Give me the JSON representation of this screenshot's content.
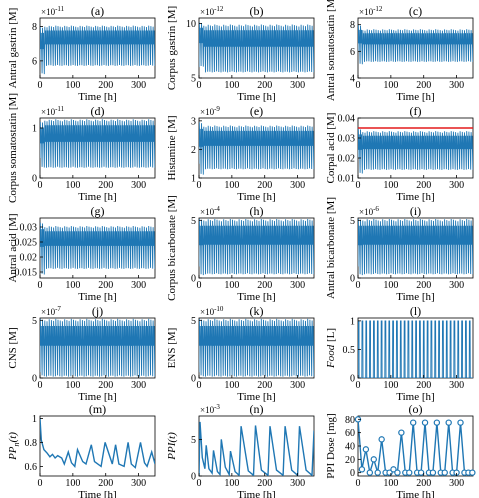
{
  "colors": {
    "line": "#1f77b4",
    "reference": "#e41a1c",
    "axis": "#000000"
  },
  "chart_data": [
    {
      "type": "line",
      "label": "(a)",
      "ylabel": "Antral gastrin [M]",
      "xlabel": "Time [h]",
      "scale": "×10^{-11}",
      "xlim": [
        0,
        350
      ],
      "ylim": [
        5,
        8.5
      ],
      "xticks": [
        0,
        100,
        200,
        300
      ],
      "yticks": [
        6,
        8
      ],
      "osc": {
        "kind": "wave",
        "n": 52,
        "low": 5.7,
        "high": 8.0,
        "start": 6.0,
        "transient": [
          5.2,
          7.9
        ]
      }
    },
    {
      "type": "line",
      "label": "(b)",
      "ylabel": "Corpus gastrin [M]",
      "xlabel": "Time [h]",
      "scale": "×10^{-12}",
      "xlim": [
        0,
        350
      ],
      "ylim": [
        5,
        10.5
      ],
      "xticks": [
        0,
        100,
        200,
        300
      ],
      "yticks": [
        5,
        10
      ],
      "osc": {
        "kind": "wave",
        "n": 52,
        "low": 5.5,
        "high": 9.8,
        "start": 6.0,
        "transient": [
          6.0,
          10.0
        ]
      }
    },
    {
      "type": "line",
      "label": "(c)",
      "ylabel": "Antral somatostatin [M]",
      "xlabel": "Time [h]",
      "scale": "×10^{-12}",
      "xlim": [
        0,
        350
      ],
      "ylim": [
        4,
        8.5
      ],
      "xticks": [
        0,
        100,
        200,
        300
      ],
      "yticks": [
        4,
        6,
        8
      ],
      "osc": {
        "kind": "wave",
        "n": 52,
        "low": 5.2,
        "high": 7.6,
        "start": 6.0,
        "transient": [
          5.0,
          7.9
        ]
      }
    },
    {
      "type": "line",
      "label": "(d)",
      "ylabel": "Corpus somatostatin [M]",
      "xlabel": "Time [h]",
      "scale": "×10^{-11}",
      "xlim": [
        0,
        350
      ],
      "ylim": [
        0,
        1.2
      ],
      "xticks": [
        0,
        100,
        200,
        300
      ],
      "yticks": [
        0,
        1
      ],
      "osc": {
        "kind": "wave",
        "n": 52,
        "low": 0.2,
        "high": 1.15,
        "start": 0.4,
        "transient": [
          0.2,
          1.1
        ]
      }
    },
    {
      "type": "line",
      "label": "(e)",
      "ylabel": "Histamine [M]",
      "xlabel": "Time [h]",
      "scale": "×10^{-9}",
      "xlim": [
        0,
        350
      ],
      "ylim": [
        1,
        3.1
      ],
      "xticks": [
        0,
        100,
        200,
        300
      ],
      "yticks": [
        1,
        2,
        3
      ],
      "osc": {
        "kind": "wave",
        "n": 52,
        "low": 1.3,
        "high": 2.8,
        "start": 1.5,
        "transient": [
          1.1,
          2.9
        ]
      }
    },
    {
      "type": "line",
      "label": "(f)",
      "ylabel": "Corpal acid [M]",
      "xlabel": "Time [h]",
      "scale": "",
      "xlim": [
        0,
        350
      ],
      "ylim": [
        0.01,
        0.04
      ],
      "xticks": [
        0,
        100,
        200,
        300
      ],
      "yticks": [
        0.01,
        0.02,
        0.03,
        0.04
      ],
      "hline": 0.035,
      "osc": {
        "kind": "wave",
        "n": 52,
        "low": 0.014,
        "high": 0.033,
        "start": 0.02,
        "transient": [
          0.012,
          0.034
        ]
      }
    },
    {
      "type": "line",
      "label": "(g)",
      "ylabel": "Antral acid [M]",
      "xlabel": "Time [h]",
      "scale": "",
      "xlim": [
        0,
        350
      ],
      "ylim": [
        0.013,
        0.033
      ],
      "xticks": [
        0,
        100,
        200,
        300
      ],
      "yticks": [
        0.015,
        0.02,
        0.025,
        0.03
      ],
      "osc": {
        "kind": "wave",
        "n": 52,
        "low": 0.016,
        "high": 0.03,
        "start": 0.02,
        "transient": [
          0.014,
          0.031
        ]
      }
    },
    {
      "type": "line",
      "label": "(h)",
      "ylabel": "Corpus bicarbonate [M]",
      "xlabel": "Time [h]",
      "scale": "×10^{-4}",
      "xlim": [
        0,
        350
      ],
      "ylim": [
        0,
        5.2
      ],
      "xticks": [
        0,
        100,
        200,
        300
      ],
      "yticks": [
        0,
        5
      ],
      "osc": {
        "kind": "wave",
        "n": 52,
        "low": 0.3,
        "high": 5.0,
        "start": 1.0,
        "transient": [
          0.2,
          5.0
        ]
      }
    },
    {
      "type": "line",
      "label": "(i)",
      "ylabel": "Antral bicarbonate [M]",
      "xlabel": "Time [h]",
      "scale": "×10^{-6}",
      "xlim": [
        0,
        350
      ],
      "ylim": [
        0,
        5.2
      ],
      "xticks": [
        0,
        100,
        200,
        300
      ],
      "yticks": [
        0,
        5
      ],
      "osc": {
        "kind": "wave",
        "n": 52,
        "low": 0.3,
        "high": 5.0,
        "start": 1.0,
        "transient": [
          0.2,
          5.0
        ]
      }
    },
    {
      "type": "line",
      "label": "(j)",
      "ylabel": "CNS [M]",
      "xlabel": "Time [h]",
      "scale": "×10^{-7}",
      "xlim": [
        0,
        350
      ],
      "ylim": [
        0,
        5.2
      ],
      "xticks": [
        0,
        100,
        200,
        300
      ],
      "yticks": [
        0,
        5
      ],
      "osc": {
        "kind": "wave",
        "n": 52,
        "low": 0.1,
        "high": 5.0,
        "start": 0.5,
        "transient": [
          0.1,
          5.0
        ]
      }
    },
    {
      "type": "line",
      "label": "(k)",
      "ylabel": "ENS [M]",
      "xlabel": "Time [h]",
      "scale": "×10^{-10}",
      "xlim": [
        0,
        350
      ],
      "ylim": [
        0,
        5.2
      ],
      "xticks": [
        0,
        100,
        200,
        300
      ],
      "yticks": [
        0,
        5
      ],
      "osc": {
        "kind": "wave",
        "n": 52,
        "low": 0.1,
        "high": 5.0,
        "start": 0.5,
        "transient": [
          0.1,
          5.0
        ]
      }
    },
    {
      "type": "line",
      "label": "(l)",
      "ylabel": "Food [L]",
      "ylabel_italic_word": "Food",
      "xlabel": "Time [h]",
      "scale": "",
      "xlim": [
        0,
        350
      ],
      "ylim": [
        0,
        1.05
      ],
      "xticks": [
        0,
        100,
        200,
        300
      ],
      "yticks": [
        0,
        0.5,
        1
      ],
      "osc": {
        "kind": "pulse",
        "n": 30,
        "low": 0,
        "high": 1
      }
    },
    {
      "type": "line",
      "label": "(m)",
      "ylabel": "PP_n(t)",
      "xlabel": "Time [h]",
      "scale": "",
      "xlim": [
        0,
        350
      ],
      "ylim": [
        0.52,
        1.02
      ],
      "xticks": [
        0,
        100,
        200,
        300
      ],
      "yticks": [
        0.6,
        0.8,
        1
      ],
      "x": [
        0,
        4,
        12,
        22,
        30,
        38,
        46,
        54,
        66,
        74,
        86,
        96,
        106,
        114,
        130,
        140,
        156,
        166,
        186,
        198,
        220,
        230,
        240,
        256,
        268,
        278,
        290,
        306,
        318,
        326,
        340,
        350
      ],
      "y": [
        1.0,
        0.82,
        0.74,
        0.71,
        0.68,
        0.7,
        0.67,
        0.69,
        0.67,
        0.62,
        0.72,
        0.63,
        0.6,
        0.74,
        0.64,
        0.62,
        0.78,
        0.64,
        0.6,
        0.8,
        0.62,
        0.78,
        0.62,
        0.6,
        0.8,
        0.62,
        0.59,
        0.8,
        0.63,
        0.6,
        0.72,
        0.62
      ]
    },
    {
      "type": "line",
      "label": "(n)",
      "ylabel": "PPI(t)",
      "xlabel": "Time [h]",
      "scale": "×10^{-3}",
      "xlim": [
        0,
        350
      ],
      "ylim": [
        0,
        8.2
      ],
      "xticks": [
        0,
        100,
        200,
        300
      ],
      "yticks": [
        0,
        5
      ],
      "x": [
        0,
        3,
        10,
        18,
        22,
        30,
        40,
        44,
        56,
        64,
        68,
        80,
        92,
        96,
        110,
        122,
        128,
        150,
        166,
        172,
        190,
        210,
        216,
        236,
        256,
        262,
        282,
        300,
        306,
        326,
        344,
        350
      ],
      "y": [
        0,
        7.4,
        2.5,
        1.0,
        4.2,
        1.0,
        0.4,
        3.5,
        0.6,
        0.2,
        5.0,
        1.2,
        0.2,
        3.4,
        0.6,
        0.1,
        6.8,
        0.7,
        0.1,
        6.9,
        0.8,
        0.1,
        6.8,
        0.8,
        0.1,
        6.8,
        0.8,
        0.1,
        6.8,
        0.8,
        0.1,
        6.2
      ]
    },
    {
      "type": "line",
      "label": "(o)",
      "ylabel": "PPI Dose [mg]",
      "xlabel": "Time [h]",
      "scale": "",
      "xlim": [
        0,
        350
      ],
      "ylim": [
        -5,
        85
      ],
      "xticks": [
        0,
        100,
        200,
        300
      ],
      "yticks": [
        0,
        20,
        40,
        60,
        80
      ],
      "markers": true,
      "x": [
        0,
        12,
        24,
        36,
        48,
        60,
        72,
        84,
        96,
        108,
        120,
        132,
        144,
        156,
        168,
        180,
        192,
        204,
        216,
        228,
        240,
        252,
        264,
        276,
        288,
        300,
        312,
        324,
        336,
        348
      ],
      "y": [
        80,
        5,
        35,
        0,
        20,
        0,
        50,
        0,
        0,
        5,
        0,
        60,
        0,
        0,
        75,
        0,
        0,
        75,
        0,
        0,
        75,
        0,
        0,
        75,
        0,
        0,
        75,
        0,
        0,
        0
      ]
    }
  ]
}
